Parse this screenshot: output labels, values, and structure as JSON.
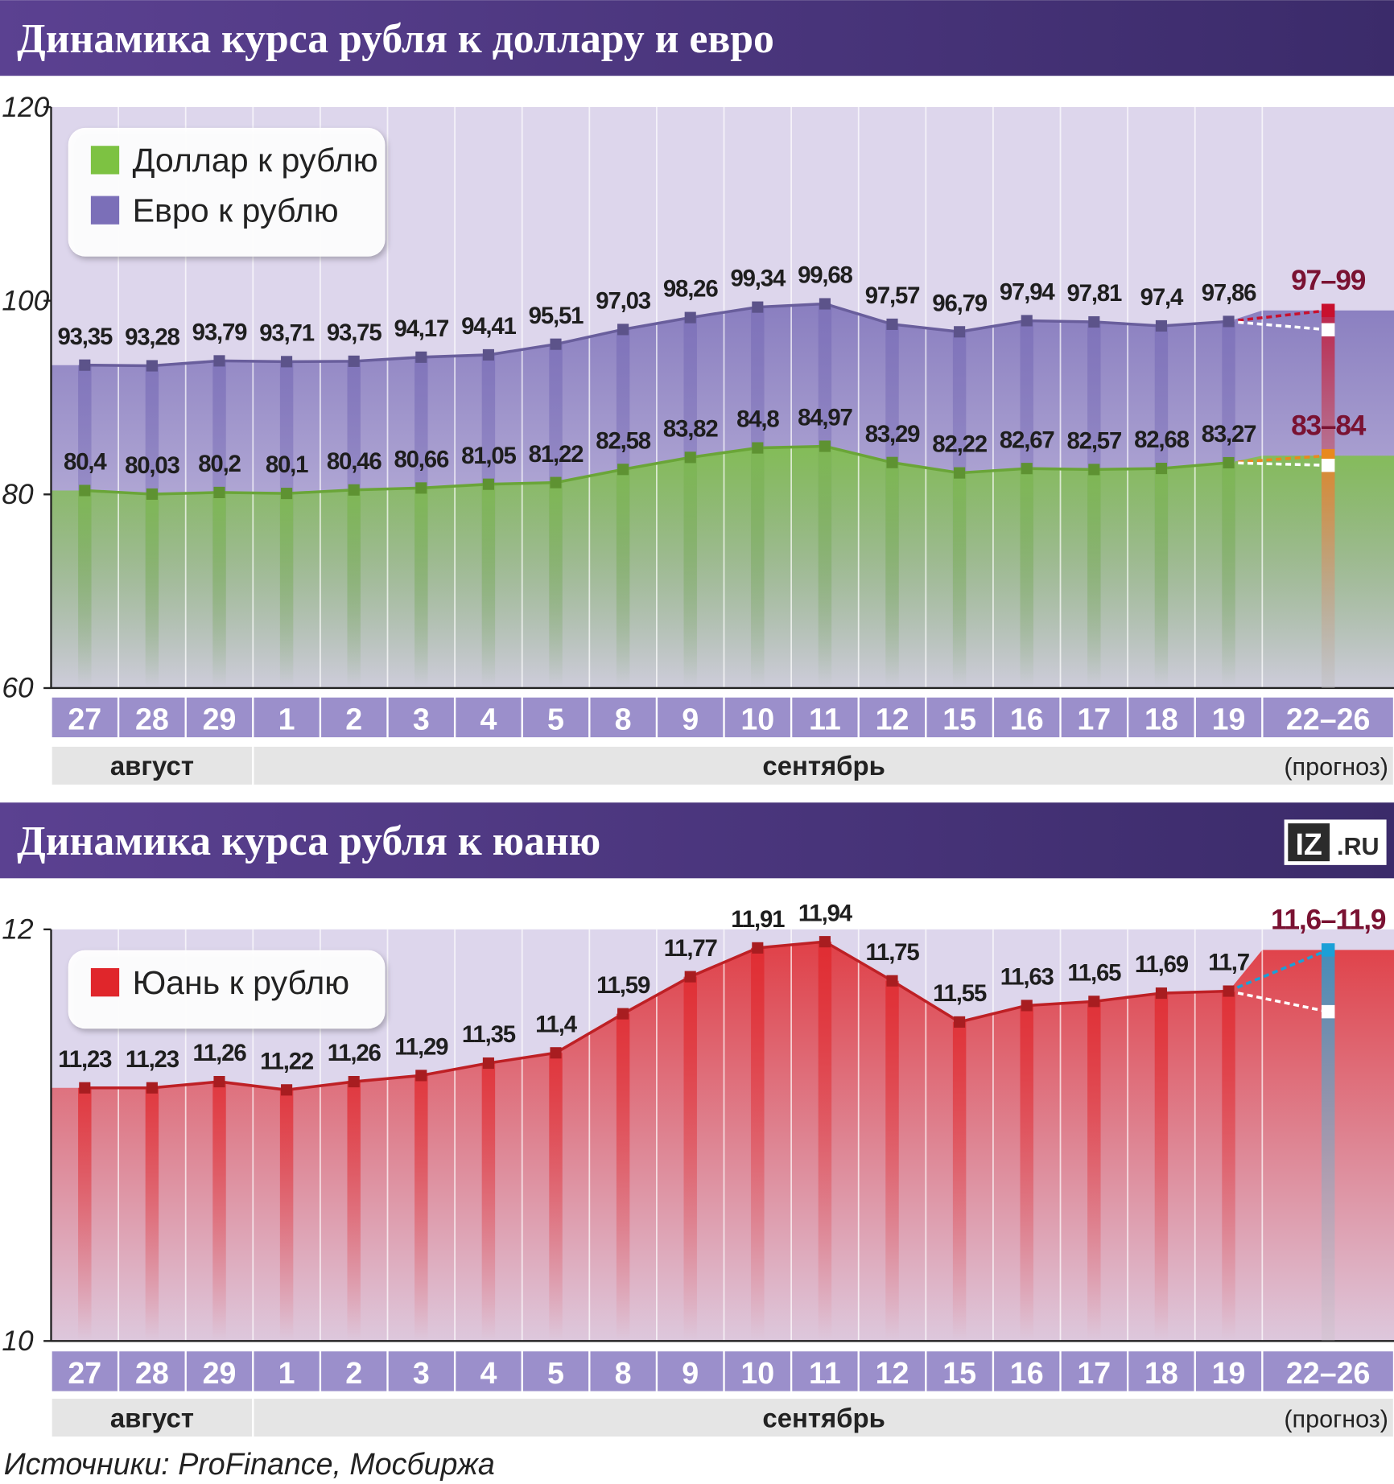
{
  "chart_data": [
    {
      "type": "line",
      "title": "Динамика курса рубля к доллару и евро",
      "categories": [
        "27",
        "28",
        "29",
        "1",
        "2",
        "3",
        "4",
        "5",
        "8",
        "9",
        "10",
        "11",
        "12",
        "15",
        "16",
        "17",
        "18",
        "19",
        "22–26"
      ],
      "months": [
        {
          "label": "август",
          "count": 3
        },
        {
          "label": "сентябрь",
          "count": 16
        }
      ],
      "forecast_note": "(прогноз)",
      "ylim": [
        60,
        120
      ],
      "yticks": [
        60,
        80,
        100,
        120
      ],
      "series": [
        {
          "name": "Евро к рублю",
          "color": "#7b6fb8",
          "forecast_color": "#c8102e",
          "values": [
            93.35,
            93.28,
            93.79,
            93.71,
            93.75,
            94.17,
            94.41,
            95.51,
            97.03,
            98.26,
            99.34,
            99.68,
            97.57,
            96.79,
            97.94,
            97.81,
            97.4,
            97.86,
            null
          ],
          "value_labels": [
            "93,35",
            "93,28",
            "93,79",
            "93,71",
            "93,75",
            "94,17",
            "94,41",
            "95,51",
            "97,03",
            "98,26",
            "99,34",
            "99,68",
            "97,57",
            "96,79",
            "97,94",
            "97,81",
            "97,4",
            "97,86",
            null
          ],
          "forecast": {
            "label": "97–99",
            "low": 97,
            "high": 99
          }
        },
        {
          "name": "Доллар к рублю",
          "color": "#7dc242",
          "forecast_color": "#e8891e",
          "values": [
            80.4,
            80.03,
            80.2,
            80.1,
            80.46,
            80.66,
            81.05,
            81.22,
            82.58,
            83.82,
            84.8,
            84.97,
            83.29,
            82.22,
            82.67,
            82.57,
            82.68,
            83.27,
            null
          ],
          "value_labels": [
            "80,4",
            "80,03",
            "80,2",
            "80,1",
            "80,46",
            "80,66",
            "81,05",
            "81,22",
            "82,58",
            "83,82",
            "84,8",
            "84,97",
            "83,29",
            "82,22",
            "82,67",
            "82,57",
            "82,68",
            "83,27",
            null
          ],
          "forecast": {
            "label": "83–84",
            "low": 83,
            "high": 84
          }
        }
      ],
      "legend_order": [
        1,
        0
      ]
    },
    {
      "type": "line",
      "title": "Динамика курса рубля к юаню",
      "categories": [
        "27",
        "28",
        "29",
        "1",
        "2",
        "3",
        "4",
        "5",
        "8",
        "9",
        "10",
        "11",
        "12",
        "15",
        "16",
        "17",
        "18",
        "19",
        "22–26"
      ],
      "months": [
        {
          "label": "август",
          "count": 3
        },
        {
          "label": "сентябрь",
          "count": 16
        }
      ],
      "forecast_note": "(прогноз)",
      "ylim": [
        10,
        12
      ],
      "yticks": [
        10,
        12
      ],
      "series": [
        {
          "name": "Юань к рублю",
          "color": "#e0262b",
          "forecast_color": "#1ba0d7",
          "values": [
            11.23,
            11.23,
            11.26,
            11.22,
            11.26,
            11.29,
            11.35,
            11.4,
            11.59,
            11.77,
            11.91,
            11.94,
            11.75,
            11.55,
            11.63,
            11.65,
            11.69,
            11.7,
            null
          ],
          "value_labels": [
            "11,23",
            "11,23",
            "11,26",
            "11,22",
            "11,26",
            "11,29",
            "11,35",
            "11,4",
            "11,59",
            "11,77",
            "11,91",
            "11,94",
            "11,75",
            "11,55",
            "11,63",
            "11,65",
            "11,69",
            "11,7",
            null
          ],
          "forecast": {
            "label": "11,6–11,9",
            "low": 11.6,
            "high": 11.9
          }
        }
      ],
      "legend_order": [
        0
      ]
    }
  ],
  "logo": {
    "left": "IZ",
    "right": ".RU"
  },
  "source": "Источники: ProFinance, Мосбиржа"
}
